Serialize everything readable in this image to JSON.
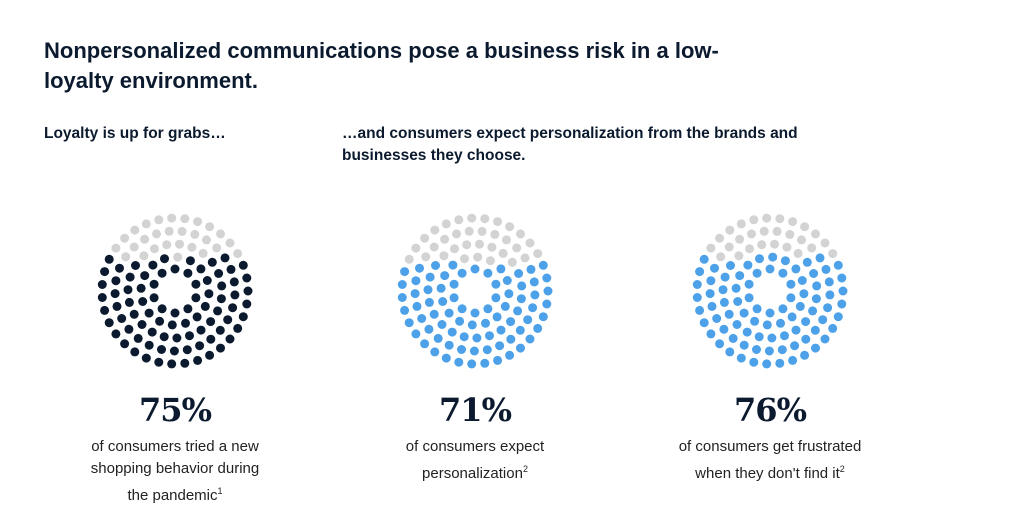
{
  "title": "Nonpersonalized communications pose a business risk in a low-loyalty environment.",
  "subtitles": [
    "Loyalty is up for grabs…",
    "…and consumers expect personalization from the brands and businesses they choose."
  ],
  "colors": {
    "empty": "#d3d3d3",
    "dark": "#0b1a2e",
    "blue": "#4da1e8"
  },
  "chart_data": {
    "type": "dot-circle",
    "items": [
      {
        "value": 75,
        "label": "75%",
        "text": "of consumers tried a new shopping behavior during the pandemic",
        "footnote": "1",
        "color": "dark"
      },
      {
        "value": 71,
        "label": "71%",
        "text": "of consumers expect personalization",
        "footnote": "2",
        "color": "blue"
      },
      {
        "value": 76,
        "label": "76%",
        "text": "of consumers get frustrated when they don't find it",
        "footnote": "2",
        "color": "blue"
      }
    ]
  }
}
